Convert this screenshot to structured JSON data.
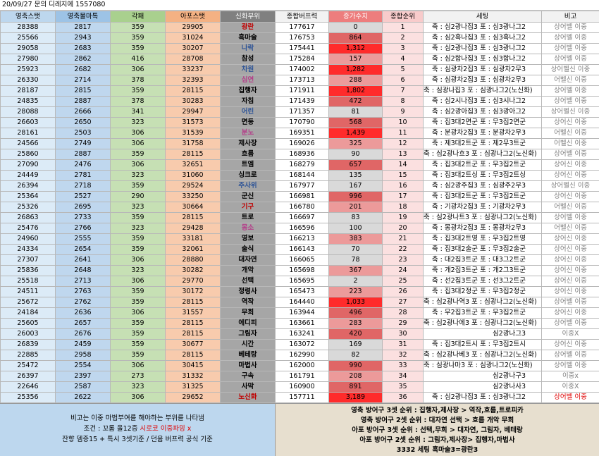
{
  "title": "20/09/27 문의 디레지에 1557080",
  "columns": [
    "영축스탯",
    "영축물마톡",
    "각패",
    "아포스탯",
    "신화부위",
    "종합버프력",
    "증가수치",
    "종합순위",
    "세팅",
    "비고"
  ],
  "colors": {
    "increase_strong": "#ff2b2b",
    "increase_medium": "#e06666",
    "increase_light": "#ec9a9a",
    "increase_none": "#d9d9d9",
    "myth_red": "#c00000",
    "myth_blue": "#2f5597",
    "myth_pink": "#b4408a",
    "note_red": "#e00000"
  },
  "rows": [
    [
      "28388",
      "2817",
      "359",
      "29905",
      "광란",
      "177617",
      "0",
      "1",
      "축 : 심2광나집3 포 : 심3광나그2",
      "상어벨 이중"
    ],
    [
      "25566",
      "2943",
      "359",
      "31024",
      "흑마술",
      "176753",
      "864",
      "2",
      "축 : 심2흑나집3 포 : 심3흑나그2",
      "상어벨 이중"
    ],
    [
      "29058",
      "2683",
      "359",
      "30207",
      "나락",
      "175441",
      "1,312",
      "3",
      "축 : 심2광나집3 포 : 심3광나그2",
      "상어벨 이중"
    ],
    [
      "27980",
      "2862",
      "416",
      "28708",
      "참성",
      "175284",
      "157",
      "4",
      "축 : 심2함나집3 포 : 심3함나그2",
      "상어벨 이중"
    ],
    [
      "25923",
      "2682",
      "306",
      "33237",
      "차원",
      "174002",
      "1,282",
      "5",
      "축 : 심광차2집3 포 : 심광차2무3",
      "상어벨신 이중"
    ],
    [
      "26330",
      "2714",
      "378",
      "32393",
      "심연",
      "173713",
      "288",
      "6",
      "축 : 심광차2집3 포 : 심광차2무3",
      "어벨신 이중"
    ],
    [
      "28187",
      "2815",
      "359",
      "28115",
      "집행자",
      "171911",
      "1,802",
      "7",
      "축 : 심광나집3 포 : 심광나그2(노신화)",
      "상어벨 이중"
    ],
    [
      "24835",
      "2887",
      "378",
      "30283",
      "자침",
      "171439",
      "472",
      "8",
      "축 : 심2시나집3 포 : 심3시나그2",
      "상어벨 이중"
    ],
    [
      "28088",
      "2666",
      "341",
      "29947",
      "어린",
      "171357",
      "81",
      "9",
      "축 : 심2광아집3 포 : 심3광아그2",
      "상어벨신 이중"
    ],
    [
      "26603",
      "2650",
      "323",
      "31573",
      "면둥",
      "170790",
      "568",
      "10",
      "축 : 집3대2면군 포 : 무3집2면군",
      "상어신 이중"
    ],
    [
      "28161",
      "2503",
      "306",
      "31539",
      "분노",
      "169351",
      "1,439",
      "11",
      "축 : 분광차2집3 포 : 분광차2무3",
      "어벨신 이중"
    ],
    [
      "24566",
      "2749",
      "306",
      "31758",
      "제사장",
      "169026",
      "325",
      "12",
      "축 : 제3대2트군 포 : 제2무3트군",
      "어벨신 이중"
    ],
    [
      "25860",
      "2887",
      "359",
      "28115",
      "흐름",
      "168936",
      "90",
      "13",
      "축 : 심2광나흐3 포 : 심광나그2(노신화)",
      "상어벨 이중"
    ],
    [
      "27090",
      "2476",
      "306",
      "32651",
      "트엠",
      "168279",
      "657",
      "14",
      "축 : 집3대2트군 포 : 무3집2트군",
      "상어신 이중"
    ],
    [
      "24449",
      "2781",
      "323",
      "31060",
      "싱크로",
      "168144",
      "135",
      "15",
      "축 : 집3대2트싱 포 : 무3집2트싱",
      "상어신 이중"
    ],
    [
      "26394",
      "2718",
      "359",
      "29524",
      "주사위",
      "167977",
      "167",
      "16",
      "축 : 심2광주집3 포 : 심광주2무3",
      "상어벨신 이중"
    ],
    [
      "25364",
      "2527",
      "290",
      "33250",
      "군신",
      "166981",
      "996",
      "17",
      "축 : 집3대2트군 포 : 무3집2트군",
      "상어신 이중"
    ],
    [
      "25326",
      "2695",
      "323",
      "30664",
      "기구",
      "166780",
      "201",
      "18",
      "축 : 기광차2집3 포 : 기광차2무3",
      "어벨신 이중"
    ],
    [
      "26863",
      "2733",
      "359",
      "28115",
      "트로",
      "166697",
      "83",
      "19",
      "축 : 심2광나트3 포 : 심광나그2(노신화)",
      "상어벨 이중"
    ],
    [
      "25476",
      "2766",
      "323",
      "29428",
      "몽소",
      "166596",
      "100",
      "20",
      "축 : 몽광차2집3 포 : 몽광차2무3",
      "어벨신 이중"
    ],
    [
      "24960",
      "2555",
      "359",
      "33181",
      "영보",
      "166213",
      "383",
      "21",
      "축 : 집3대2트영 포 : 무3집2트영",
      "상어신 이중"
    ],
    [
      "24334",
      "2654",
      "359",
      "32061",
      "술식",
      "166143",
      "70",
      "22",
      "축 : 집3대2술군 포 : 무3집2술군",
      "상어신 이중"
    ],
    [
      "27307",
      "2641",
      "306",
      "28880",
      "대자연",
      "166065",
      "78",
      "23",
      "축 : 대2집3트군 포 : 대3그2트군",
      "상어신 이중"
    ],
    [
      "25836",
      "2648",
      "323",
      "30282",
      "개악",
      "165698",
      "367",
      "24",
      "축 : 개2집3트군 포 : 개2그3트군",
      "상어신 이중"
    ],
    [
      "25518",
      "2713",
      "306",
      "29770",
      "선택",
      "165695",
      "2",
      "25",
      "축 : 선2집3트군 포 : 선3그2트군",
      "상어신 이중"
    ],
    [
      "24511",
      "2763",
      "359",
      "30172",
      "정령사",
      "165473",
      "223",
      "26",
      "축 : 집3대2정군 포 : 무3집2정군",
      "상어신 이중"
    ],
    [
      "25672",
      "2762",
      "359",
      "28115",
      "역작",
      "164440",
      "1,033",
      "27",
      "축 : 심2광나역3 포 : 심광나그2(노신화)",
      "상어벨 이중"
    ],
    [
      "24184",
      "2636",
      "306",
      "31557",
      "무희",
      "163944",
      "496",
      "28",
      "축 : 무2집3트군 포 : 무3집2트군",
      "상어신 이중"
    ],
    [
      "25605",
      "2657",
      "359",
      "28115",
      "에디피",
      "163661",
      "283",
      "29",
      "축 : 심2광나에3 포 : 심광나그2(노신화)",
      "상어벨 이중"
    ],
    [
      "26003",
      "2676",
      "359",
      "28115",
      "그림자",
      "163241",
      "420",
      "30",
      "심2광나그3",
      "이중X"
    ],
    [
      "26839",
      "2459",
      "359",
      "30677",
      "시간",
      "163072",
      "169",
      "31",
      "축 : 집3대2트시 포 : 무3집2트시",
      "상어신 이중"
    ],
    [
      "22885",
      "2958",
      "359",
      "28115",
      "베테랑",
      "162990",
      "82",
      "32",
      "축 : 심2광나베3 포 : 심광나그2(노신화)",
      "상어벨 이중"
    ],
    [
      "25472",
      "2554",
      "306",
      "30415",
      "마법사",
      "162000",
      "990",
      "33",
      "축 : 심광나마3 포 : 심광나그2(노신화)",
      "상어벨 이중"
    ],
    [
      "26397",
      "2397",
      "273",
      "31332",
      "구속",
      "161791",
      "208",
      "34",
      "심2광나구3",
      "이중x"
    ],
    [
      "22646",
      "2587",
      "323",
      "31325",
      "사막",
      "160900",
      "891",
      "35",
      "심2광나사3",
      "이중X"
    ],
    [
      "25356",
      "2622",
      "306",
      "29652",
      "노신화",
      "157711",
      "3,189",
      "36",
      "축 : 심2광나집3 포 : 심3광나그2",
      "상어벨 이중"
    ]
  ],
  "increase_levels": [
    "none",
    "medium",
    "strong",
    "light",
    "strong",
    "light",
    "strong",
    "medium",
    "none",
    "medium",
    "strong",
    "light",
    "none",
    "medium",
    "none",
    "none",
    "medium",
    "light",
    "none",
    "none",
    "light",
    "none",
    "none",
    "light",
    "none",
    "light",
    "strong",
    "medium",
    "light",
    "medium",
    "none",
    "none",
    "medium",
    "light",
    "medium",
    "strong"
  ],
  "myth_color": [
    "red",
    "default",
    "blue",
    "default",
    "blue",
    "pink",
    "default",
    "default",
    "blue",
    "default",
    "pink",
    "default",
    "default",
    "default",
    "default",
    "blue",
    "default",
    "red",
    "default",
    "pink",
    "default",
    "default",
    "default",
    "default",
    "default",
    "default",
    "default",
    "default",
    "default",
    "default",
    "default",
    "default",
    "default",
    "default",
    "default",
    "red"
  ],
  "note_red_rows": [
    35
  ],
  "note_lines": [
    "비고는 이중 마법부여를 해야하는 부위를 나타냄",
    "조건 : 꼬롬 올12증",
    "시로코 이중파밍 x",
    "잔향 뎀증15 + 특시 3셋기준 / 던윰 버프력 공식 기준"
  ],
  "summary_lines": [
    "영축 방어구 3셋 순위 : 집행자,제사장 > 역작,흐름,트로피카",
    "영축 방어구 2셋 순위 : 대자연 선택 > 흐름 개악 무희",
    "아포 방어구 3셋 순위 : 선택,무희 > 대자연, 그림자, 베테랑",
    "아포 방어구 2셋 순위 : 그림자,제사장> 집행자,마법사",
    "3332 세팅 흑마술3=광란3"
  ]
}
